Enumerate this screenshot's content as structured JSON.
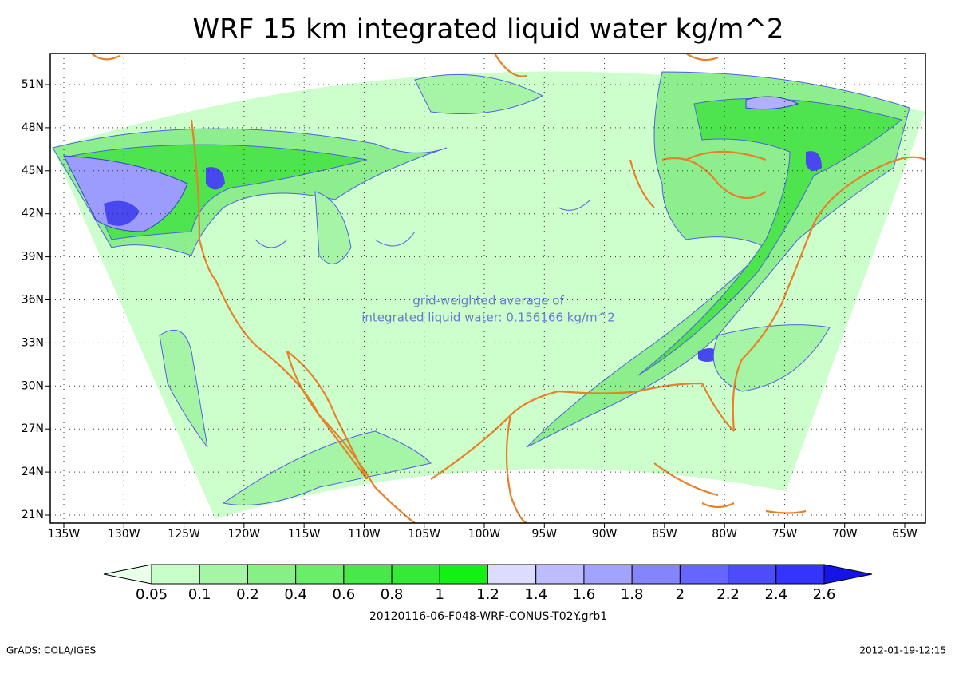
{
  "title": "WRF 15 km integrated liquid water kg/m^2",
  "map": {
    "lat_labels": [
      "21N",
      "24N",
      "27N",
      "30N",
      "33N",
      "36N",
      "39N",
      "42N",
      "45N",
      "48N",
      "51N"
    ],
    "lon_labels": [
      "135W",
      "130W",
      "125W",
      "120W",
      "115W",
      "110W",
      "105W",
      "100W",
      "95W",
      "90W",
      "85W",
      "80W",
      "75W",
      "70W",
      "65W"
    ],
    "annotation": [
      "grid-weighted average of",
      "integrated liquid water: 0.156166 kg/m^2"
    ]
  },
  "colorbar": {
    "levels": [
      0.05,
      0.1,
      0.2,
      0.4,
      0.6,
      0.8,
      1,
      1.2,
      1.4,
      1.6,
      1.8,
      2,
      2.2,
      2.4,
      2.6
    ],
    "colors": [
      "#eaffea",
      "#c8ffc8",
      "#a6f5a6",
      "#86f086",
      "#68ee68",
      "#48e848",
      "#34ea34",
      "#14f014",
      "#dcdcff",
      "#bcbcff",
      "#a2a2ff",
      "#8484ff",
      "#6666ff",
      "#4c4cf8",
      "#3434ff",
      "#1414e6"
    ]
  },
  "filename": "20120116-06-F048-WRF-CONUS-T02Y.grb1",
  "footer": {
    "left": "GrADS: COLA/IGES",
    "right": "2012-01-19-12:15"
  }
}
